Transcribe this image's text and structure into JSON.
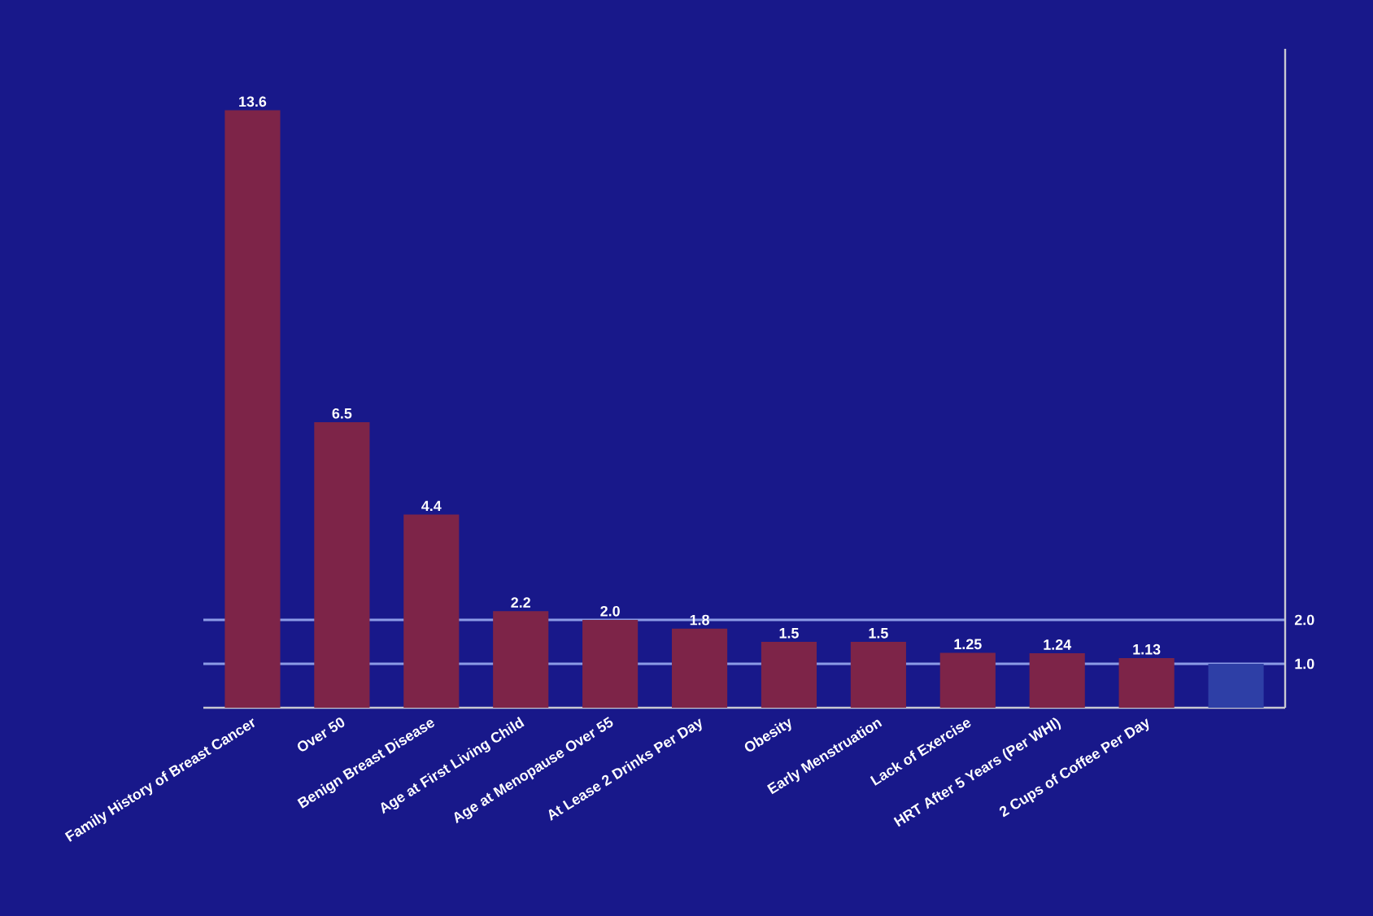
{
  "chart_data": {
    "type": "bar",
    "categories": [
      "Family History of Breast Cancer",
      "Over 50",
      "Benign Breast Disease",
      "Age at First Living Child",
      "Age at Menopause Over 55",
      "At Lease 2 Drinks Per Day",
      "Obesity",
      "Early Menstruation",
      "Lack of Exercise",
      "HRT After 5 Years (Per WHI)",
      "2 Cups of Coffee Per Day",
      null
    ],
    "values": [
      13.6,
      6.5,
      4.4,
      2.2,
      2.0,
      1.8,
      1.5,
      1.5,
      1.25,
      1.24,
      1.13,
      1.0
    ],
    "value_labels": [
      "13.6",
      "6.5",
      "4.4",
      "2.2",
      "2.0",
      "1.8",
      "1.5",
      "1.5",
      "1.25",
      "1.24",
      "1.13",
      null
    ],
    "colors": [
      "#7d2448",
      "#7d2448",
      "#7d2448",
      "#7d2448",
      "#7d2448",
      "#7d2448",
      "#7d2448",
      "#7d2448",
      "#7d2448",
      "#7d2448",
      "#7d2448",
      "#2e3fa6"
    ],
    "ylim": [
      0,
      15
    ],
    "yticks": [
      {
        "value": 1,
        "label": "1.0"
      },
      {
        "value": 2,
        "label": "2.0"
      }
    ],
    "grid": "y"
  }
}
